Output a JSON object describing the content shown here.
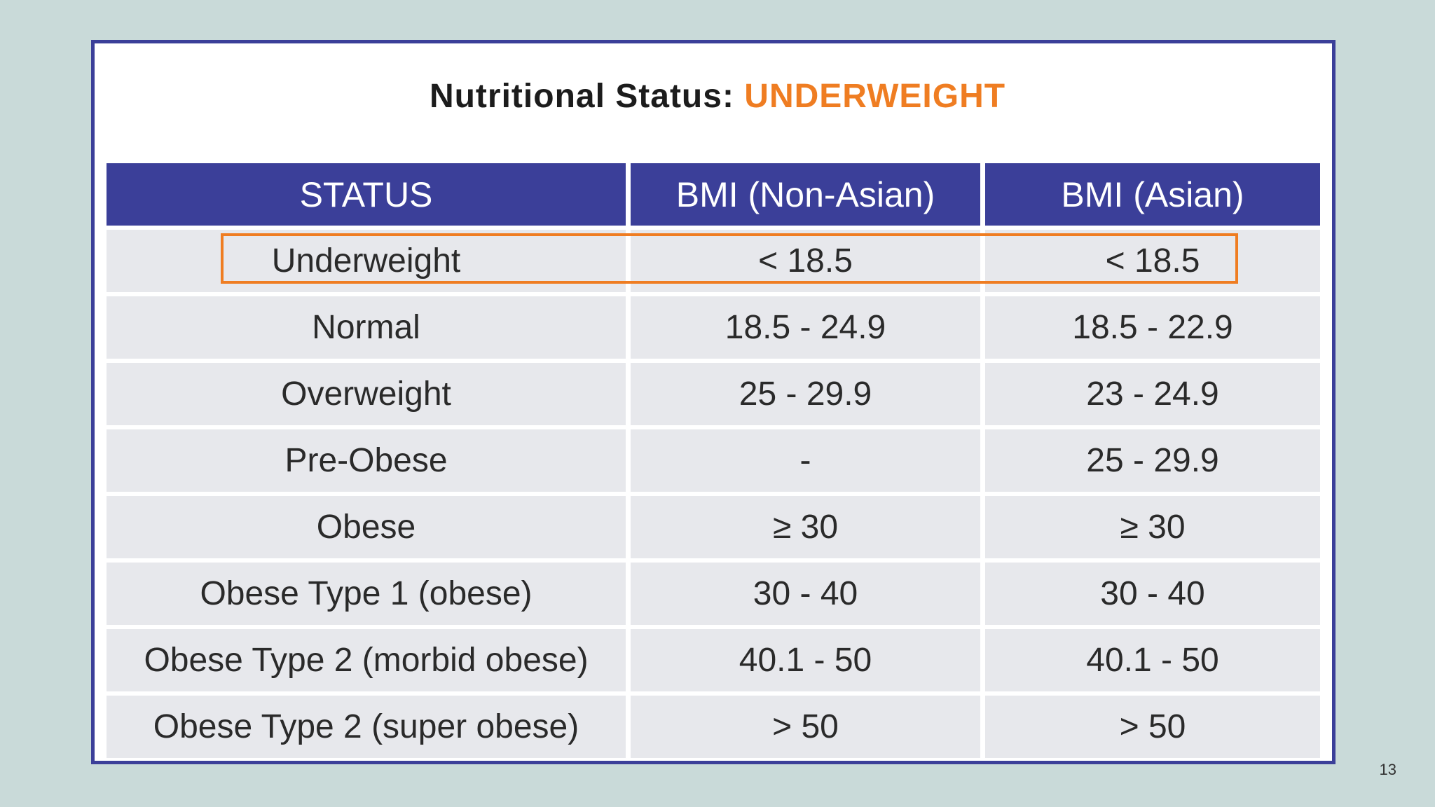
{
  "title": {
    "prefix": "Nutritional Status:",
    "highlight": "UNDERWEIGHT"
  },
  "colors": {
    "background": "#c9dad9",
    "header": "#3b3f99",
    "accent": "#ef7d22",
    "row": "#e7e8ec"
  },
  "table": {
    "headers": [
      "STATUS",
      "BMI (Non-Asian)",
      "BMI (Asian)"
    ],
    "rows": [
      [
        "Underweight",
        "< 18.5",
        "< 18.5"
      ],
      [
        "Normal",
        "18.5 - 24.9",
        "18.5 - 22.9"
      ],
      [
        "Overweight",
        "25 - 29.9",
        "23 - 24.9"
      ],
      [
        "Pre-Obese",
        "-",
        "25 - 29.9"
      ],
      [
        "Obese",
        "≥ 30",
        "≥ 30"
      ],
      [
        "Obese Type 1 (obese)",
        "30 - 40",
        "30 - 40"
      ],
      [
        "Obese Type 2 (morbid obese)",
        "40.1 - 50",
        "40.1 - 50"
      ],
      [
        "Obese Type 2 (super obese)",
        "> 50",
        "> 50"
      ]
    ],
    "highlighted_row": "Underweight"
  },
  "page_number": "13"
}
